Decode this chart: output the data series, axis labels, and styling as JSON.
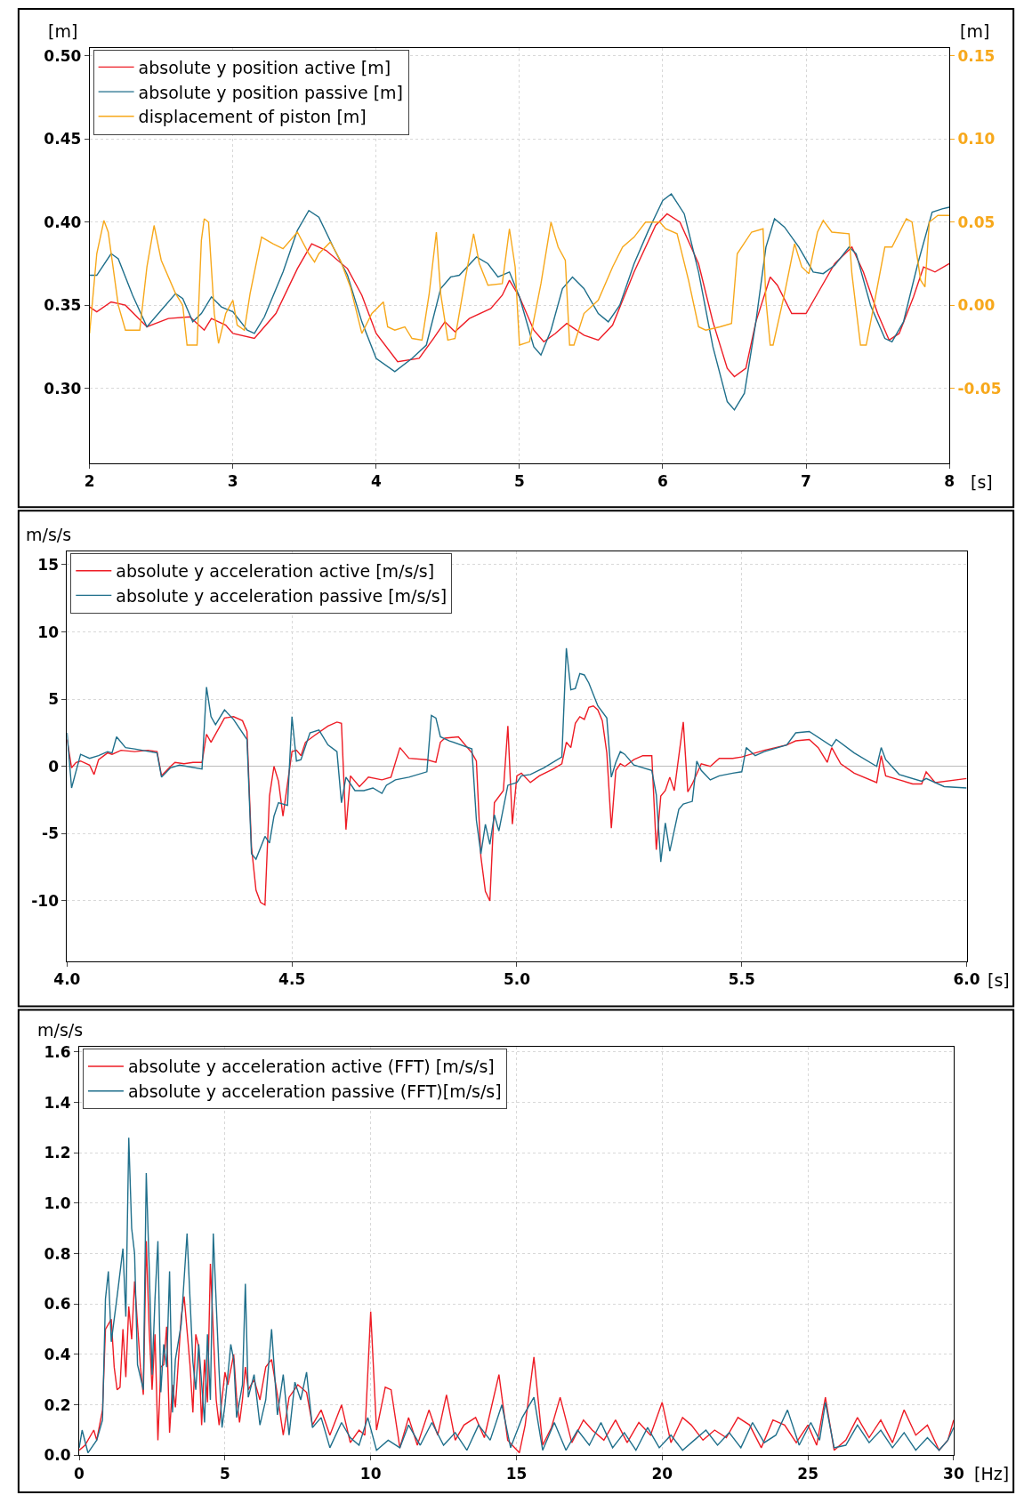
{
  "chart_data": [
    {
      "type": "line",
      "xlabel": "[s]",
      "ylabel": "[m]",
      "y2label": "[m]",
      "xlim": [
        2,
        8
      ],
      "xticks": [
        2,
        3,
        4,
        5,
        6,
        7,
        8
      ],
      "ylim": [
        0.255,
        0.505
      ],
      "yticks": [
        {
          "value": 0.3,
          "label": "0.30"
        },
        {
          "value": 0.35,
          "label": "0.35"
        },
        {
          "value": 0.4,
          "label": "0.40"
        },
        {
          "value": 0.45,
          "label": "0.45"
        },
        {
          "value": 0.5,
          "label": "0.50"
        }
      ],
      "y2lim": [
        -0.095,
        0.155
      ],
      "y2ticks": [
        {
          "value": -0.05,
          "label": "-0.05"
        },
        {
          "value": 0,
          "label": "0.00"
        },
        {
          "value": 0.05,
          "label": "0.05"
        },
        {
          "value": 0.1,
          "label": "0.10"
        },
        {
          "value": 0.15,
          "label": "0.15"
        }
      ],
      "grid": true,
      "legend": "top left",
      "series": [
        {
          "name": "absolute y position active [m]",
          "color": "#ee1c25",
          "x": [
            2.0,
            2.05,
            2.15,
            2.25,
            2.4,
            2.55,
            2.7,
            2.8,
            2.85,
            2.95,
            3.0,
            3.15,
            3.3,
            3.45,
            3.55,
            3.65,
            3.8,
            3.9,
            4.0,
            4.15,
            4.3,
            4.4,
            4.48,
            4.55,
            4.65,
            4.8,
            4.88,
            4.93,
            5.0,
            5.1,
            5.17,
            5.25,
            5.33,
            5.45,
            5.55,
            5.65,
            5.8,
            5.95,
            6.03,
            6.12,
            6.25,
            6.35,
            6.45,
            6.5,
            6.58,
            6.65,
            6.75,
            6.8,
            6.9,
            7.0,
            7.1,
            7.2,
            7.32,
            7.4,
            7.5,
            7.58,
            7.65,
            7.75,
            7.82,
            7.9,
            8.0
          ],
          "values": [
            0.349,
            0.346,
            0.352,
            0.35,
            0.337,
            0.342,
            0.343,
            0.335,
            0.342,
            0.338,
            0.333,
            0.33,
            0.345,
            0.372,
            0.387,
            0.383,
            0.372,
            0.356,
            0.333,
            0.316,
            0.318,
            0.33,
            0.34,
            0.334,
            0.342,
            0.348,
            0.356,
            0.365,
            0.355,
            0.335,
            0.328,
            0.333,
            0.339,
            0.332,
            0.329,
            0.338,
            0.37,
            0.398,
            0.405,
            0.4,
            0.375,
            0.34,
            0.312,
            0.307,
            0.312,
            0.34,
            0.367,
            0.362,
            0.345,
            0.345,
            0.36,
            0.375,
            0.385,
            0.37,
            0.345,
            0.329,
            0.333,
            0.355,
            0.373,
            0.37,
            0.375
          ]
        },
        {
          "name": "absolute y position passive [m]",
          "color": "#1f6f8b",
          "x": [
            2.0,
            2.05,
            2.15,
            2.2,
            2.3,
            2.4,
            2.5,
            2.6,
            2.65,
            2.72,
            2.78,
            2.85,
            2.92,
            3.0,
            3.1,
            3.15,
            3.22,
            3.35,
            3.45,
            3.53,
            3.6,
            3.7,
            3.8,
            3.9,
            4.0,
            4.13,
            4.25,
            4.35,
            4.45,
            4.52,
            4.58,
            4.7,
            4.78,
            4.85,
            4.93,
            5.0,
            5.1,
            5.15,
            5.22,
            5.3,
            5.37,
            5.45,
            5.55,
            5.62,
            5.7,
            5.8,
            5.9,
            6.0,
            6.06,
            6.15,
            6.25,
            6.35,
            6.45,
            6.5,
            6.57,
            6.65,
            6.72,
            6.78,
            6.85,
            6.95,
            7.05,
            7.12,
            7.2,
            7.3,
            7.35,
            7.45,
            7.55,
            7.6,
            7.68,
            7.78,
            7.88,
            7.95,
            8.0
          ],
          "values": [
            0.368,
            0.368,
            0.381,
            0.378,
            0.356,
            0.337,
            0.347,
            0.357,
            0.354,
            0.34,
            0.345,
            0.355,
            0.349,
            0.346,
            0.335,
            0.333,
            0.343,
            0.37,
            0.395,
            0.407,
            0.403,
            0.385,
            0.368,
            0.34,
            0.318,
            0.31,
            0.318,
            0.326,
            0.36,
            0.367,
            0.368,
            0.379,
            0.375,
            0.367,
            0.37,
            0.355,
            0.325,
            0.32,
            0.335,
            0.36,
            0.367,
            0.36,
            0.345,
            0.34,
            0.35,
            0.375,
            0.395,
            0.413,
            0.417,
            0.405,
            0.37,
            0.325,
            0.292,
            0.287,
            0.297,
            0.34,
            0.385,
            0.402,
            0.397,
            0.385,
            0.37,
            0.369,
            0.374,
            0.385,
            0.381,
            0.35,
            0.33,
            0.328,
            0.34,
            0.375,
            0.406,
            0.408,
            0.409
          ]
        },
        {
          "name": "displacement of piston [m]",
          "color": "#f7a81b",
          "axis": "y2",
          "x": [
            2.0,
            2.05,
            2.1,
            2.13,
            2.2,
            2.25,
            2.35,
            2.4,
            2.45,
            2.5,
            2.6,
            2.65,
            2.68,
            2.75,
            2.78,
            2.8,
            2.83,
            2.87,
            2.9,
            2.95,
            3.0,
            3.03,
            3.08,
            3.12,
            3.2,
            3.28,
            3.35,
            3.45,
            3.53,
            3.57,
            3.6,
            3.68,
            3.75,
            3.82,
            3.9,
            3.97,
            4.05,
            4.08,
            4.13,
            4.2,
            4.25,
            4.32,
            4.37,
            4.42,
            4.45,
            4.5,
            4.55,
            4.62,
            4.68,
            4.72,
            4.78,
            4.88,
            4.93,
            4.97,
            5.0,
            5.07,
            5.15,
            5.22,
            5.27,
            5.32,
            5.35,
            5.38,
            5.45,
            5.55,
            5.65,
            5.72,
            5.8,
            5.88,
            5.98,
            6.02,
            6.1,
            6.18,
            6.25,
            6.3,
            6.4,
            6.48,
            6.52,
            6.62,
            6.7,
            6.72,
            6.75,
            6.77,
            6.85,
            6.92,
            6.97,
            7.02,
            7.08,
            7.12,
            7.18,
            7.3,
            7.32,
            7.38,
            7.42,
            7.48,
            7.55,
            7.6,
            7.7,
            7.74,
            7.8,
            7.83,
            7.86,
            7.92,
            8.0
          ],
          "values": [
            -0.017,
            0.031,
            0.051,
            0.044,
            0.0,
            -0.015,
            -0.015,
            0.023,
            0.048,
            0.027,
            0.007,
            0.0,
            -0.024,
            -0.024,
            0.039,
            0.052,
            0.05,
            -0.005,
            -0.023,
            -0.005,
            0.003,
            -0.012,
            -0.015,
            0.007,
            0.041,
            0.037,
            0.034,
            0.044,
            0.031,
            0.026,
            0.031,
            0.038,
            0.027,
            0.011,
            -0.017,
            -0.005,
            0.002,
            -0.013,
            -0.015,
            -0.013,
            -0.02,
            -0.021,
            0.007,
            0.044,
            0.007,
            -0.021,
            -0.02,
            0.015,
            0.043,
            0.025,
            0.012,
            0.013,
            0.046,
            0.023,
            -0.024,
            -0.022,
            0.013,
            0.05,
            0.035,
            0.027,
            -0.024,
            -0.024,
            -0.005,
            0.003,
            0.023,
            0.035,
            0.041,
            0.05,
            0.05,
            0.046,
            0.043,
            0.015,
            -0.013,
            -0.015,
            -0.013,
            -0.011,
            0.031,
            0.044,
            0.046,
            0.003,
            -0.024,
            -0.024,
            0.007,
            0.037,
            0.023,
            0.019,
            0.044,
            0.051,
            0.044,
            0.043,
            0.019,
            -0.024,
            -0.024,
            0.003,
            0.035,
            0.035,
            0.052,
            0.05,
            0.015,
            0.011,
            0.05,
            0.054,
            0.054
          ]
        }
      ]
    },
    {
      "type": "line",
      "xlabel": "[s]",
      "ylabel": "m/s/s",
      "xlim": [
        4,
        6
      ],
      "xticks": [
        {
          "value": 4,
          "label": "4.0"
        },
        {
          "value": 4.5,
          "label": "4.5"
        },
        {
          "value": 5,
          "label": "5.0"
        },
        {
          "value": 5.5,
          "label": "5.5"
        },
        {
          "value": 6,
          "label": "6.0"
        }
      ],
      "ylim": [
        -14.5,
        16
      ],
      "yticks": [
        -10,
        -5,
        0,
        5,
        10,
        15
      ],
      "grid": true,
      "legend": "top left",
      "series": [
        {
          "name": "absolute y acceleration active [m/s/s]",
          "color": "#ee1c25",
          "x": [
            4.0,
            4.01,
            4.02,
            4.03,
            4.05,
            4.06,
            4.07,
            4.09,
            4.1,
            4.12,
            4.15,
            4.18,
            4.2,
            4.21,
            4.23,
            4.24,
            4.26,
            4.28,
            4.3,
            4.31,
            4.32,
            4.35,
            4.37,
            4.39,
            4.4,
            4.41,
            4.42,
            4.43,
            4.44,
            4.45,
            4.46,
            4.47,
            4.48,
            4.5,
            4.51,
            4.52,
            4.53,
            4.55,
            4.58,
            4.6,
            4.61,
            4.62,
            4.63,
            4.65,
            4.67,
            4.7,
            4.72,
            4.74,
            4.76,
            4.8,
            4.82,
            4.83,
            4.84,
            4.87,
            4.9,
            4.91,
            4.92,
            4.93,
            4.94,
            4.95,
            4.97,
            4.98,
            4.99,
            5.0,
            5.01,
            5.03,
            5.05,
            5.08,
            5.1,
            5.11,
            5.12,
            5.13,
            5.14,
            5.15,
            5.16,
            5.17,
            5.18,
            5.19,
            5.2,
            5.21,
            5.22,
            5.23,
            5.24,
            5.26,
            5.28,
            5.3,
            5.31,
            5.32,
            5.33,
            5.34,
            5.35,
            5.37,
            5.38,
            5.39,
            5.41,
            5.43,
            5.45,
            5.48,
            5.5,
            5.55,
            5.6,
            5.62,
            5.65,
            5.67,
            5.69,
            5.7,
            5.72,
            5.75,
            5.8,
            5.81,
            5.82,
            5.85,
            5.88,
            5.9,
            5.91,
            5.93,
            6.0
          ],
          "values": [
            2.0,
            -0.1,
            0.3,
            0.4,
            0.1,
            -0.6,
            0.5,
            1.0,
            0.9,
            1.2,
            1.1,
            1.2,
            1.1,
            -0.7,
            0.0,
            0.3,
            0.2,
            0.3,
            0.3,
            2.4,
            1.8,
            3.6,
            3.7,
            3.4,
            2.6,
            -6.0,
            -9.2,
            -10.1,
            -10.3,
            -2.2,
            0.0,
            -1.1,
            -3.7,
            1.1,
            1.2,
            0.8,
            1.8,
            2.3,
            3.0,
            3.3,
            3.2,
            -4.7,
            -0.7,
            -1.5,
            -0.8,
            -1.0,
            -0.8,
            1.4,
            0.6,
            0.5,
            0.3,
            1.8,
            2.1,
            2.2,
            1.0,
            0.4,
            -6.7,
            -9.3,
            -10.0,
            -2.7,
            -1.8,
            3.0,
            -4.3,
            -0.7,
            -0.5,
            -1.2,
            -0.7,
            -0.2,
            0.2,
            1.8,
            1.4,
            3.2,
            3.7,
            3.5,
            4.4,
            4.5,
            4.2,
            3.4,
            1.0,
            -4.6,
            -0.3,
            0.2,
            0.0,
            0.5,
            0.8,
            0.8,
            -6.2,
            -2.2,
            -1.8,
            -0.8,
            -1.8,
            3.3,
            -1.9,
            -1.3,
            0.2,
            0.0,
            0.6,
            0.6,
            0.7,
            1.2,
            1.6,
            1.9,
            2.0,
            1.4,
            0.3,
            1.4,
            0.2,
            -0.5,
            -1.2,
            0.8,
            -0.7,
            -1.0,
            -1.3,
            -1.3,
            -0.4,
            -1.2,
            -0.9
          ]
        },
        {
          "name": "absolute y acceleration passive [m/s/s]",
          "color": "#1f6f8b",
          "x": [
            4.0,
            4.01,
            4.03,
            4.05,
            4.07,
            4.09,
            4.1,
            4.11,
            4.13,
            4.15,
            4.2,
            4.21,
            4.23,
            4.25,
            4.3,
            4.31,
            4.32,
            4.33,
            4.35,
            4.37,
            4.4,
            4.41,
            4.42,
            4.44,
            4.45,
            4.46,
            4.47,
            4.49,
            4.5,
            4.51,
            4.52,
            4.54,
            4.56,
            4.58,
            4.6,
            4.61,
            4.62,
            4.64,
            4.66,
            4.68,
            4.7,
            4.71,
            4.73,
            4.76,
            4.8,
            4.81,
            4.82,
            4.83,
            4.85,
            4.9,
            4.91,
            4.92,
            4.93,
            4.94,
            4.95,
            4.96,
            4.98,
            5.0,
            5.01,
            5.03,
            5.06,
            5.1,
            5.11,
            5.12,
            5.13,
            5.14,
            5.15,
            5.16,
            5.18,
            5.2,
            5.21,
            5.22,
            5.23,
            5.24,
            5.26,
            5.3,
            5.31,
            5.32,
            5.33,
            5.34,
            5.36,
            5.37,
            5.39,
            5.4,
            5.41,
            5.43,
            5.45,
            5.48,
            5.5,
            5.51,
            5.53,
            5.55,
            5.6,
            5.62,
            5.65,
            5.7,
            5.71,
            5.75,
            5.8,
            5.81,
            5.82,
            5.85,
            5.9,
            5.91,
            5.95,
            6.0
          ],
          "values": [
            2.5,
            -1.6,
            0.9,
            0.6,
            0.8,
            1.1,
            1.0,
            2.2,
            1.4,
            1.3,
            1.0,
            -0.8,
            -0.1,
            0.1,
            -0.2,
            5.9,
            3.7,
            3.1,
            4.2,
            3.5,
            2.0,
            -6.5,
            -6.9,
            -5.2,
            -5.7,
            -3.7,
            -2.7,
            -2.9,
            3.7,
            0.4,
            0.5,
            2.5,
            2.7,
            1.6,
            1.1,
            -2.7,
            -0.8,
            -1.8,
            -1.8,
            -1.6,
            -2.0,
            -1.4,
            -1.0,
            -0.8,
            -0.4,
            3.8,
            3.6,
            2.2,
            1.9,
            1.3,
            -4.0,
            -6.5,
            -4.3,
            -5.8,
            -3.6,
            -4.8,
            -1.4,
            -1.2,
            -0.7,
            -0.6,
            -0.1,
            0.7,
            8.8,
            5.7,
            5.8,
            6.9,
            6.8,
            6.2,
            4.5,
            3.6,
            -0.8,
            0.3,
            1.1,
            0.9,
            0.1,
            -0.3,
            -2.1,
            -7.1,
            -4.2,
            -6.3,
            -3.2,
            -2.8,
            -2.6,
            0.4,
            -0.3,
            -1.0,
            -0.7,
            -0.5,
            -0.4,
            1.4,
            0.8,
            1.1,
            1.6,
            2.5,
            2.6,
            1.5,
            2.0,
            1.0,
            0.0,
            1.4,
            0.5,
            -0.6,
            -1.1,
            -0.9,
            -1.5,
            -1.6
          ]
        }
      ]
    },
    {
      "type": "line",
      "xlabel": "[Hz]",
      "ylabel": "m/s/s",
      "xlim": [
        0,
        30
      ],
      "xticks": [
        0,
        5,
        10,
        15,
        20,
        25,
        30
      ],
      "ylim": [
        0,
        1.62
      ],
      "yticks": [
        {
          "value": 0,
          "label": "0.0"
        },
        {
          "value": 0.2,
          "label": "0.2"
        },
        {
          "value": 0.4,
          "label": "0.4"
        },
        {
          "value": 0.6,
          "label": "0.6"
        },
        {
          "value": 0.8,
          "label": "0.8"
        },
        {
          "value": 1.0,
          "label": "1.0"
        },
        {
          "value": 1.2,
          "label": "1.2"
        },
        {
          "value": 1.4,
          "label": "1.4"
        },
        {
          "value": 1.6,
          "label": "1.6"
        }
      ],
      "grid": true,
      "legend": "top left",
      "series": [
        {
          "name": "absolute y acceleration active (FFT) [m/s/s]",
          "color": "#ee1c25",
          "x": [
            0,
            0.2,
            0.5,
            0.6,
            0.8,
            0.9,
            1.1,
            1.2,
            1.3,
            1.4,
            1.5,
            1.6,
            1.7,
            1.8,
            1.9,
            2.1,
            2.2,
            2.3,
            2.4,
            2.5,
            2.6,
            2.7,
            2.8,
            2.9,
            3.0,
            3.1,
            3.2,
            3.3,
            3.5,
            3.6,
            3.8,
            3.9,
            4.0,
            4.1,
            4.2,
            4.3,
            4.4,
            4.5,
            4.7,
            4.8,
            5.0,
            5.1,
            5.3,
            5.4,
            5.5,
            5.6,
            5.7,
            5.8,
            6.0,
            6.2,
            6.4,
            6.6,
            6.8,
            7.0,
            7.2,
            7.5,
            7.8,
            8.0,
            8.3,
            8.6,
            9.0,
            9.3,
            9.6,
            9.8,
            10.0,
            10.2,
            10.5,
            10.7,
            11.0,
            11.3,
            11.6,
            12.0,
            12.3,
            12.6,
            12.9,
            13.2,
            13.6,
            13.9,
            14.4,
            14.7,
            15.1,
            15.3,
            15.6,
            15.9,
            16.2,
            16.5,
            16.9,
            17.3,
            17.6,
            18.0,
            18.4,
            18.8,
            19.2,
            19.6,
            20.0,
            20.3,
            20.7,
            21.0,
            21.4,
            21.8,
            22.2,
            22.6,
            23.0,
            23.4,
            23.8,
            24.2,
            24.6,
            25.0,
            25.3,
            25.6,
            25.9,
            26.3,
            26.7,
            27.1,
            27.5,
            27.9,
            28.3,
            28.7,
            29.1,
            29.5,
            29.8,
            30.0
          ],
          "values": [
            0.02,
            0.04,
            0.1,
            0.06,
            0.18,
            0.5,
            0.54,
            0.35,
            0.26,
            0.27,
            0.5,
            0.31,
            0.59,
            0.46,
            0.69,
            0.35,
            0.24,
            0.85,
            0.5,
            0.26,
            0.48,
            0.06,
            0.35,
            0.36,
            0.51,
            0.09,
            0.28,
            0.19,
            0.55,
            0.63,
            0.36,
            0.17,
            0.48,
            0.43,
            0.12,
            0.38,
            0.21,
            0.76,
            0.22,
            0.12,
            0.33,
            0.28,
            0.4,
            0.23,
            0.13,
            0.22,
            0.35,
            0.26,
            0.3,
            0.22,
            0.35,
            0.38,
            0.24,
            0.08,
            0.23,
            0.28,
            0.25,
            0.12,
            0.18,
            0.08,
            0.2,
            0.05,
            0.1,
            0.08,
            0.57,
            0.1,
            0.27,
            0.26,
            0.03,
            0.15,
            0.04,
            0.18,
            0.08,
            0.24,
            0.06,
            0.12,
            0.15,
            0.07,
            0.32,
            0.06,
            0.01,
            0.12,
            0.39,
            0.04,
            0.11,
            0.23,
            0.05,
            0.14,
            0.1,
            0.06,
            0.14,
            0.05,
            0.13,
            0.08,
            0.21,
            0.05,
            0.15,
            0.12,
            0.06,
            0.1,
            0.07,
            0.15,
            0.12,
            0.03,
            0.14,
            0.12,
            0.05,
            0.12,
            0.04,
            0.23,
            0.02,
            0.06,
            0.15,
            0.07,
            0.14,
            0.05,
            0.18,
            0.08,
            0.12,
            0.02,
            0.06,
            0.14
          ]
        },
        {
          "name": "absolute y acceleration passive (FFT)[m/s/s]",
          "color": "#1f6f8b",
          "x": [
            0,
            0.1,
            0.3,
            0.6,
            0.8,
            0.9,
            1.0,
            1.1,
            1.3,
            1.5,
            1.6,
            1.7,
            1.8,
            1.9,
            2.0,
            2.2,
            2.3,
            2.4,
            2.5,
            2.6,
            2.7,
            2.8,
            2.9,
            3.0,
            3.1,
            3.2,
            3.3,
            3.5,
            3.7,
            3.9,
            4.0,
            4.1,
            4.3,
            4.4,
            4.5,
            4.6,
            4.8,
            4.9,
            5.0,
            5.2,
            5.3,
            5.4,
            5.6,
            5.7,
            5.8,
            6.0,
            6.2,
            6.4,
            6.6,
            6.8,
            7.0,
            7.2,
            7.4,
            7.6,
            7.8,
            8.0,
            8.3,
            8.6,
            9.0,
            9.3,
            9.6,
            9.9,
            10.2,
            10.6,
            11.0,
            11.3,
            11.7,
            12.1,
            12.5,
            12.9,
            13.3,
            13.7,
            14.1,
            14.5,
            14.8,
            15.2,
            15.6,
            15.9,
            16.3,
            16.7,
            17.1,
            17.5,
            17.9,
            18.3,
            18.7,
            19.1,
            19.5,
            19.9,
            20.3,
            20.7,
            21.1,
            21.5,
            21.9,
            22.3,
            22.7,
            23.1,
            23.5,
            23.9,
            24.3,
            24.7,
            25.1,
            25.4,
            25.6,
            25.9,
            26.3,
            26.7,
            27.1,
            27.5,
            27.9,
            28.3,
            28.7,
            29.1,
            29.5,
            29.8,
            30.0
          ],
          "values": [
            0.03,
            0.1,
            0.01,
            0.06,
            0.14,
            0.62,
            0.73,
            0.45,
            0.63,
            0.82,
            0.55,
            1.26,
            0.9,
            0.8,
            0.36,
            0.26,
            1.12,
            0.75,
            0.32,
            0.62,
            0.85,
            0.25,
            0.44,
            0.35,
            0.73,
            0.17,
            0.38,
            0.52,
            0.88,
            0.37,
            0.26,
            0.44,
            0.13,
            0.48,
            0.22,
            0.88,
            0.33,
            0.11,
            0.2,
            0.44,
            0.38,
            0.15,
            0.28,
            0.68,
            0.23,
            0.32,
            0.12,
            0.22,
            0.5,
            0.16,
            0.32,
            0.08,
            0.29,
            0.22,
            0.33,
            0.11,
            0.15,
            0.03,
            0.13,
            0.07,
            0.04,
            0.15,
            0.02,
            0.06,
            0.03,
            0.12,
            0.04,
            0.13,
            0.04,
            0.09,
            0.02,
            0.12,
            0.06,
            0.2,
            0.03,
            0.15,
            0.23,
            0.02,
            0.13,
            0.02,
            0.1,
            0.04,
            0.13,
            0.03,
            0.09,
            0.02,
            0.11,
            0.03,
            0.08,
            0.02,
            0.06,
            0.1,
            0.04,
            0.09,
            0.03,
            0.13,
            0.05,
            0.08,
            0.18,
            0.04,
            0.13,
            0.06,
            0.21,
            0.03,
            0.04,
            0.12,
            0.05,
            0.1,
            0.03,
            0.09,
            0.02,
            0.07,
            0.02,
            0.06,
            0.11
          ]
        }
      ]
    }
  ]
}
